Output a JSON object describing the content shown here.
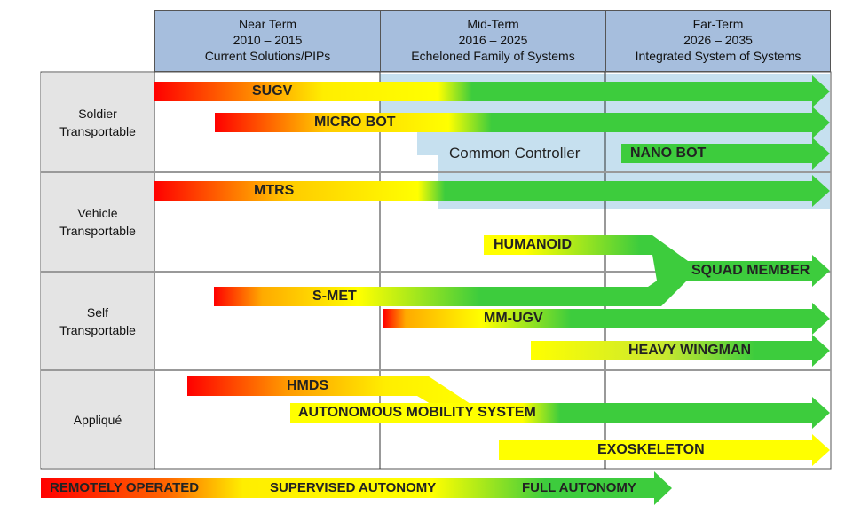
{
  "columns": [
    {
      "period": "Near Term",
      "years": "2010 – 2015",
      "subtitle": "Current Solutions/PIPs"
    },
    {
      "period": "Mid-Term",
      "years": "2016 – 2025",
      "subtitle": "Echeloned Family of Systems"
    },
    {
      "period": "Far-Term",
      "years": "2026 – 2035",
      "subtitle": "Integrated System of Systems"
    }
  ],
  "rows": [
    {
      "line1": "Soldier",
      "line2": "Transportable"
    },
    {
      "line1": "Vehicle",
      "line2": "Transportable"
    },
    {
      "line1": "Self",
      "line2": "Transportable"
    },
    {
      "line1": "Appliqué",
      "line2": ""
    }
  ],
  "common_controller": "Common Controller",
  "systems": {
    "sugv": "SUGV",
    "micro_bot": "MICRO BOT",
    "nano_bot": "NANO BOT",
    "mtrs": "MTRS",
    "humanoid": "HUMANOID",
    "squad_member": "SQUAD MEMBER",
    "s_met": "S-MET",
    "mm_ugv": "MM-UGV",
    "heavy_wingman": "HEAVY WINGMAN",
    "hmds": "HMDS",
    "ams": "AUTONOMOUS MOBILITY SYSTEM",
    "exoskeleton": "EXOSKELETON"
  },
  "legend": {
    "remote": "REMOTELY OPERATED",
    "supervised": "SUPERVISED AUTONOMY",
    "full": "FULL AUTONOMY"
  },
  "colors": {
    "red": "#ff0000",
    "yellow": "#ffff00",
    "green": "#3dcc3d",
    "header": "#a6bedd",
    "row_label": "#e4e4e4",
    "controller": "#c6e0ef"
  }
}
